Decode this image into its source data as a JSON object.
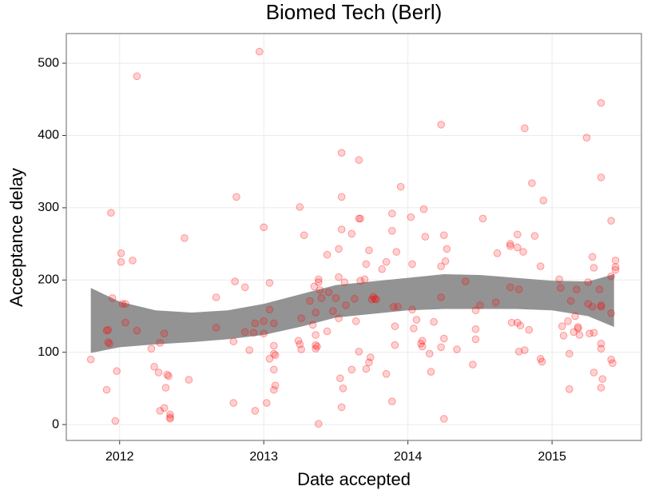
{
  "chart_data": {
    "type": "scatter",
    "title": "Biomed Tech (Berl)",
    "x_label": "Date accepted",
    "y_label": "Acceptance delay",
    "color": "#ff0000",
    "band_color": "#939393",
    "xlim": [
      2011.63,
      2015.62
    ],
    "xticks": [
      2012,
      2013,
      2014,
      2015
    ],
    "ylim": [
      -22,
      541
    ],
    "yticks": [
      0,
      100,
      200,
      300,
      400,
      500
    ],
    "grid": true,
    "x": [
      2011.8,
      2011.91,
      2011.94,
      2011.91,
      2011.92,
      2011.93,
      2011.92,
      2011.97,
      2011.98,
      2011.95,
      2012.01,
      2012.01,
      2012.02,
      2012.04,
      2012.04,
      2012.09,
      2012.12,
      2012.12,
      2012.22,
      2012.24,
      2012.27,
      2012.28,
      2012.28,
      2012.31,
      2012.31,
      2012.32,
      2012.33,
      2012.34,
      2012.35,
      2012.35,
      2012.35,
      2012.45,
      2012.48,
      2012.67,
      2012.67,
      2012.79,
      2012.79,
      2012.8,
      2012.81,
      2012.87,
      2012.87,
      2012.9,
      2012.93,
      2012.94,
      2012.94,
      2012.97,
      2013.0,
      2013.0,
      2013.0,
      2013.02,
      2013.04,
      2013.04,
      2013.04,
      2013.07,
      2013.07,
      2013.07,
      2013.08,
      2013.07,
      2013.08,
      2013.07,
      2013.24,
      2013.25,
      2013.25,
      2013.26,
      2013.26,
      2013.28,
      2013.32,
      2013.34,
      2013.35,
      2013.36,
      2013.36,
      2013.36,
      2013.36,
      2013.37,
      2013.38,
      2013.38,
      2013.38,
      2013.39,
      2013.4,
      2013.44,
      2013.44,
      2013.45,
      2013.48,
      2013.5,
      2013.52,
      2013.52,
      2013.52,
      2013.54,
      2013.54,
      2013.54,
      2013.54,
      2013.55,
      2013.53,
      2013.56,
      2013.57,
      2013.61,
      2013.61,
      2013.63,
      2013.64,
      2013.66,
      2013.66,
      2013.67,
      2013.66,
      2013.67,
      2013.7,
      2013.71,
      2013.71,
      2013.73,
      2013.73,
      2013.74,
      2013.75,
      2013.76,
      2013.77,
      2013.78,
      2013.82,
      2013.85,
      2013.85,
      2013.89,
      2013.89,
      2013.89,
      2013.9,
      2013.91,
      2013.91,
      2013.92,
      2013.93,
      2013.95,
      2014.02,
      2014.03,
      2014.03,
      2014.04,
      2014.06,
      2014.09,
      2014.1,
      2014.1,
      2014.11,
      2014.12,
      2014.15,
      2014.16,
      2014.18,
      2014.23,
      2014.23,
      2014.23,
      2014.23,
      2014.25,
      2014.25,
      2014.25,
      2014.26,
      2014.27,
      2014.34,
      2014.4,
      2014.45,
      2014.47,
      2014.47,
      2014.47,
      2014.5,
      2014.52,
      2014.61,
      2014.62,
      2014.71,
      2014.71,
      2014.71,
      2014.72,
      2014.76,
      2014.76,
      2014.76,
      2014.77,
      2014.77,
      2014.78,
      2014.8,
      2014.81,
      2014.81,
      2014.84,
      2014.86,
      2014.88,
      2014.92,
      2014.92,
      2014.93,
      2014.94,
      2015.05,
      2015.06,
      2015.07,
      2015.08,
      2015.11,
      2015.12,
      2015.12,
      2015.13,
      2015.15,
      2015.16,
      2015.17,
      2015.18,
      2015.18,
      2015.19,
      2015.24,
      2015.25,
      2015.25,
      2015.26,
      2015.28,
      2015.28,
      2015.29,
      2015.29,
      2015.29,
      2015.33,
      2015.34,
      2015.34,
      2015.34,
      2015.34,
      2015.34,
      2015.34,
      2015.34,
      2015.35,
      2015.41,
      2015.41,
      2015.41,
      2015.41,
      2015.42,
      2015.44,
      2015.44,
      2015.44
    ],
    "values": [
      90,
      48,
      293,
      130,
      114,
      112,
      131,
      5,
      74,
      175,
      237,
      225,
      167,
      167,
      141,
      227,
      482,
      130,
      105,
      80,
      72,
      113,
      19,
      126,
      23,
      51,
      69,
      67,
      14,
      10,
      8,
      258,
      62,
      176,
      134,
      30,
      115,
      198,
      315,
      190,
      128,
      103,
      127,
      140,
      19,
      516,
      273,
      126,
      143,
      30,
      159,
      196,
      91,
      140,
      109,
      98,
      96,
      76,
      54,
      48,
      116,
      301,
      111,
      147,
      104,
      262,
      171,
      138,
      191,
      124,
      155,
      110,
      105,
      108,
      201,
      197,
      1,
      186,
      175,
      235,
      129,
      183,
      157,
      175,
      147,
      243,
      204,
      376,
      315,
      270,
      24,
      50,
      64,
      197,
      165,
      264,
      76,
      174,
      143,
      366,
      285,
      285,
      101,
      199,
      201,
      222,
      77,
      241,
      86,
      93,
      173,
      177,
      174,
      173,
      215,
      70,
      225,
      292,
      268,
      32,
      163,
      136,
      110,
      239,
      163,
      329,
      287,
      222,
      159,
      133,
      145,
      112,
      108,
      116,
      298,
      260,
      98,
      73,
      142,
      415,
      219,
      176,
      107,
      262,
      8,
      119,
      226,
      243,
      104,
      198,
      83,
      132,
      118,
      158,
      165,
      285,
      169,
      237,
      190,
      250,
      247,
      141,
      263,
      245,
      141,
      187,
      101,
      137,
      239,
      410,
      103,
      131,
      334,
      261,
      219,
      91,
      87,
      310,
      201,
      189,
      136,
      123,
      143,
      98,
      49,
      171,
      128,
      150,
      187,
      133,
      135,
      124,
      397,
      197,
      167,
      126,
      163,
      232,
      217,
      72,
      127,
      187,
      342,
      445,
      163,
      112,
      165,
      105,
      51,
      63,
      282,
      154,
      205,
      90,
      85,
      227,
      214,
      218
    ],
    "band": {
      "x": [
        2011.8,
        2012.0,
        2012.25,
        2012.5,
        2012.75,
        2013.0,
        2013.25,
        2013.5,
        2013.75,
        2014.0,
        2014.25,
        2014.5,
        2014.75,
        2015.0,
        2015.25,
        2015.43
      ],
      "upper": [
        189,
        170,
        158,
        155,
        158,
        167,
        180,
        193,
        198,
        203,
        208,
        207,
        203,
        199,
        198,
        208
      ],
      "lower": [
        99,
        107,
        111,
        114,
        118,
        124,
        135,
        148,
        153,
        158,
        160,
        160,
        160,
        158,
        150,
        135
      ]
    }
  }
}
